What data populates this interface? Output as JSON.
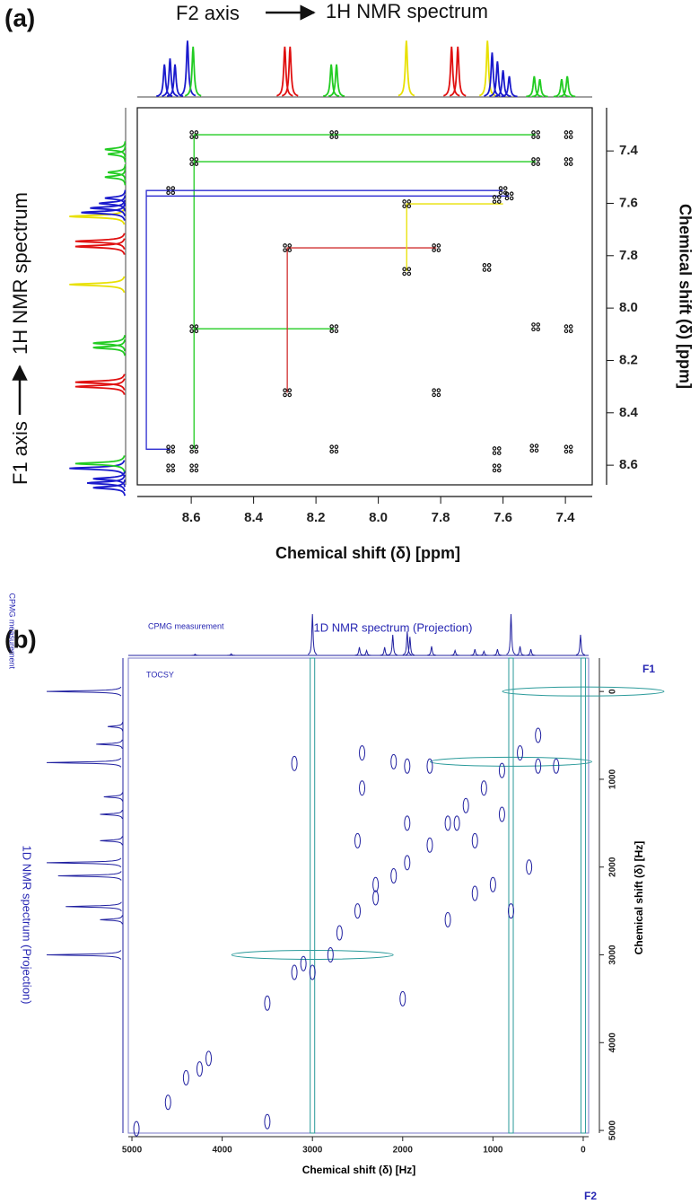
{
  "chart_data": [
    {
      "type": "cosy",
      "panel_label": "(a)",
      "top_label_left": "F2 axis",
      "top_label_right": "1H NMR spectrum",
      "side_label_left": "F1 axis",
      "side_label_right": "1H NMR spectrum",
      "xlabel": "Chemical shift (δ) [ppm]",
      "ylabel": "Chemical shift (δ) [ppm]",
      "xlim": [
        8.773,
        7.314
      ],
      "ylim": [
        7.235,
        8.675
      ],
      "xticks": [
        8.6,
        8.4,
        8.2,
        {
          "value": 8,
          "label": "8.0"
        },
        7.8,
        7.6,
        7.4
      ],
      "yticks": [
        7.4,
        7.6,
        7.8,
        {
          "value": 8,
          "label": "8.0"
        },
        8.2,
        8.4,
        8.6
      ],
      "spectrum_peaks": [
        {
          "shift": 8.686,
          "height": 0.55,
          "color": "#1a1acc"
        },
        {
          "shift": 8.668,
          "height": 0.65,
          "color": "#1a1acc"
        },
        {
          "shift": 8.652,
          "height": 0.55,
          "color": "#1a1acc"
        },
        {
          "shift": 8.612,
          "height": 0.95,
          "color": "#1a1acc"
        },
        {
          "shift": 8.594,
          "height": 0.85,
          "color": "#22cc22"
        },
        {
          "shift": 8.3,
          "height": 0.85,
          "color": "#e01010"
        },
        {
          "shift": 8.283,
          "height": 0.85,
          "color": "#e01010"
        },
        {
          "shift": 8.151,
          "height": 0.55,
          "color": "#22cc22"
        },
        {
          "shift": 8.134,
          "height": 0.55,
          "color": "#22cc22"
        },
        {
          "shift": 7.91,
          "height": 0.95,
          "color": "#e8e000"
        },
        {
          "shift": 7.765,
          "height": 0.85,
          "color": "#e01010"
        },
        {
          "shift": 7.745,
          "height": 0.85,
          "color": "#e01010"
        },
        {
          "shift": 7.65,
          "height": 0.95,
          "color": "#e8e000"
        },
        {
          "shift": 7.635,
          "height": 0.75,
          "color": "#1a1acc"
        },
        {
          "shift": 7.618,
          "height": 0.6,
          "color": "#1a1acc"
        },
        {
          "shift": 7.6,
          "height": 0.45,
          "color": "#1a1acc"
        },
        {
          "shift": 7.58,
          "height": 0.35,
          "color": "#1a1acc"
        },
        {
          "shift": 7.5,
          "height": 0.35,
          "color": "#22cc22"
        },
        {
          "shift": 7.482,
          "height": 0.3,
          "color": "#22cc22"
        },
        {
          "shift": 7.412,
          "height": 0.3,
          "color": "#22cc22"
        },
        {
          "shift": 7.394,
          "height": 0.35,
          "color": "#22cc22"
        }
      ],
      "cross_peaks": [
        [
          8.591,
          7.338
        ],
        [
          8.142,
          7.338
        ],
        [
          7.495,
          7.338
        ],
        [
          7.39,
          7.338
        ],
        [
          8.591,
          7.441
        ],
        [
          7.495,
          7.441
        ],
        [
          7.39,
          7.441
        ],
        [
          8.666,
          7.551
        ],
        [
          7.6,
          7.551
        ],
        [
          7.58,
          7.572
        ],
        [
          7.62,
          7.585
        ],
        [
          7.909,
          7.602
        ],
        [
          8.292,
          7.77
        ],
        [
          7.814,
          7.77
        ],
        [
          7.909,
          7.86
        ],
        [
          7.652,
          7.845
        ],
        [
          8.591,
          8.079
        ],
        [
          8.142,
          8.079
        ],
        [
          7.495,
          8.072
        ],
        [
          7.39,
          8.079
        ],
        [
          8.292,
          8.323
        ],
        [
          7.814,
          8.323
        ],
        [
          8.666,
          8.539
        ],
        [
          8.591,
          8.539
        ],
        [
          8.142,
          8.539
        ],
        [
          7.62,
          8.545
        ],
        [
          7.5,
          8.535
        ],
        [
          7.39,
          8.539
        ],
        [
          8.666,
          8.611
        ],
        [
          8.591,
          8.611
        ],
        [
          7.62,
          8.611
        ]
      ],
      "links": [
        {
          "color": "#22cc22",
          "points": [
            [
              7.495,
              7.338
            ],
            [
              8.591,
              7.338
            ],
            [
              8.591,
              8.539
            ]
          ]
        },
        {
          "color": "#22cc22",
          "points": [
            [
              8.591,
              7.441
            ],
            [
              7.495,
              7.441
            ]
          ]
        },
        {
          "color": "#22cc22",
          "points": [
            [
              8.591,
              8.079
            ],
            [
              8.142,
              8.079
            ]
          ]
        },
        {
          "color": "#2b2bd0",
          "points": [
            [
              7.6,
              7.551
            ],
            [
              8.744,
              7.551
            ],
            [
              8.744,
              8.539
            ],
            [
              8.666,
              8.539
            ]
          ]
        },
        {
          "color": "#2b2bd0",
          "points": [
            [
              8.744,
              7.572
            ],
            [
              7.58,
              7.572
            ]
          ]
        },
        {
          "color": "#d03030",
          "points": [
            [
              8.292,
              8.323
            ],
            [
              8.292,
              7.77
            ],
            [
              7.814,
              7.77
            ]
          ]
        },
        {
          "color": "#e8e000",
          "points": [
            [
              7.909,
              7.86
            ],
            [
              7.909,
              7.602
            ],
            [
              7.6,
              7.602
            ]
          ]
        }
      ]
    },
    {
      "type": "tocsy",
      "panel_label": "(b)",
      "top_note": "CPMG measurement",
      "top_title": "1D NMR spectrum (Projection)",
      "side_note": "CPMG measurement",
      "side_title": "1D NMR spectrum (Projection)",
      "inner_label": "TOCSY",
      "x_axis_name": "F2",
      "y_axis_name": "F1",
      "xlabel": "Chemical shift (δ) [Hz]",
      "ylabel": "Chemical shift (δ) [Hz]",
      "xlim": [
        5040,
        -60
      ],
      "ylim": [
        -380,
        5030
      ],
      "xticks": [
        5000,
        4000,
        3000,
        2000,
        1000,
        0
      ],
      "yticks": [
        0,
        1000,
        2000,
        3000,
        4000,
        5000
      ],
      "color": "#2020a0",
      "ridge_color": "#2a9a9a",
      "top_projection": [
        [
          3000,
          1
        ],
        [
          800,
          1
        ],
        [
          30,
          0.5
        ],
        [
          2110,
          0.5
        ],
        [
          1950,
          0.58
        ],
        [
          1920,
          0.45
        ],
        [
          2480,
          0.2
        ],
        [
          2400,
          0.12
        ],
        [
          1680,
          0.22
        ],
        [
          1420,
          0.12
        ],
        [
          1200,
          0.15
        ],
        [
          950,
          0.15
        ],
        [
          700,
          0.22
        ],
        [
          580,
          0.15
        ],
        [
          4300,
          0.03
        ],
        [
          3900,
          0.04
        ],
        [
          2200,
          0.2
        ],
        [
          1100,
          0.1
        ]
      ],
      "side_projection": [
        [
          0,
          1
        ],
        [
          810,
          1
        ],
        [
          600,
          0.35
        ],
        [
          1950,
          1
        ],
        [
          2100,
          0.85
        ],
        [
          2450,
          0.75
        ],
        [
          3000,
          1
        ],
        [
          1400,
          0.3
        ],
        [
          1200,
          0.25
        ],
        [
          2600,
          0.3
        ],
        [
          1700,
          0.3
        ],
        [
          400,
          0.2
        ]
      ],
      "cross_peaks": [
        [
          4950,
          4980
        ],
        [
          4600,
          4680
        ],
        [
          4400,
          4400
        ],
        [
          4250,
          4300
        ],
        [
          4150,
          4180
        ],
        [
          3500,
          3550
        ],
        [
          3100,
          3100
        ],
        [
          2700,
          2750
        ],
        [
          2500,
          2500
        ],
        [
          2300,
          2350
        ],
        [
          2100,
          2100
        ],
        [
          1950,
          1950
        ],
        [
          1700,
          1750
        ],
        [
          1500,
          1500
        ],
        [
          1300,
          1300
        ],
        [
          1100,
          1100
        ],
        [
          900,
          900
        ],
        [
          700,
          700
        ],
        [
          500,
          500
        ],
        [
          3200,
          820
        ],
        [
          2450,
          700
        ],
        [
          2450,
          1100
        ],
        [
          2100,
          800
        ],
        [
          1950,
          850
        ],
        [
          1950,
          1500
        ],
        [
          1700,
          850
        ],
        [
          1400,
          1500
        ],
        [
          1200,
          1700
        ],
        [
          1000,
          2200
        ],
        [
          800,
          2500
        ],
        [
          600,
          2000
        ],
        [
          2300,
          2200
        ],
        [
          2500,
          1700
        ],
        [
          3200,
          3200
        ],
        [
          3000,
          3200
        ],
        [
          2800,
          3000
        ],
        [
          1500,
          2600
        ],
        [
          1200,
          2300
        ],
        [
          900,
          1400
        ],
        [
          500,
          850
        ],
        [
          300,
          850
        ],
        [
          2000,
          3500
        ],
        [
          3500,
          4900
        ]
      ],
      "ridges_x": [
        3000,
        800,
        0
      ],
      "ridges_y": [
        0,
        800,
        3000
      ]
    }
  ]
}
